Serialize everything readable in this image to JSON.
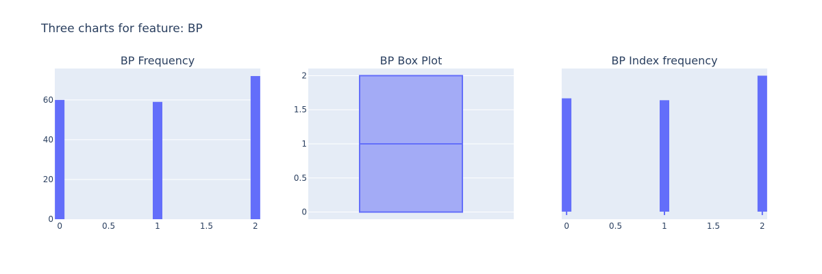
{
  "figure": {
    "title": "Three charts for feature: BP"
  },
  "colors": {
    "plot_bg": "#e5ecf6",
    "grid": "#ffffff",
    "bar": "#636efa",
    "box_fill": "#a3abf6",
    "box_line": "#636efa",
    "text": "#2a3f5f"
  },
  "chart_data": [
    {
      "type": "bar",
      "title": "BP Frequency",
      "xlabel": "",
      "ylabel": "",
      "x": [
        0,
        1,
        2
      ],
      "values": [
        60,
        59,
        72
      ],
      "xlim": [
        -0.05,
        2.05
      ],
      "ylim": [
        0,
        75.8
      ],
      "xticks": [
        0,
        0.5,
        1,
        1.5,
        2
      ],
      "xtick_labels": [
        "0",
        "0.5",
        "1",
        "1.5",
        "2"
      ],
      "yticks": [
        0,
        20,
        40,
        60
      ],
      "ytick_labels": [
        "0",
        "20",
        "40",
        "60"
      ],
      "grid": true
    },
    {
      "type": "box",
      "title": "BP Box Plot",
      "xlabel": "",
      "ylabel": "",
      "min": 0,
      "q1": 0,
      "median": 1,
      "q3": 2,
      "max": 2,
      "ylim": [
        -0.105,
        2.105
      ],
      "yticks": [
        0,
        0.5,
        1,
        1.5,
        2
      ],
      "ytick_labels": [
        "0",
        "0.5",
        "1",
        "1.5",
        "2"
      ],
      "grid": true
    },
    {
      "type": "bar",
      "title": "BP Index frequency",
      "xlabel": "",
      "ylabel": "",
      "x": [
        0,
        1,
        2
      ],
      "values": [
        60,
        59,
        72
      ],
      "xlim": [
        -0.05,
        2.05
      ],
      "ylim": [
        -4,
        75.8
      ],
      "xticks": [
        0,
        0.5,
        1,
        1.5,
        2
      ],
      "xtick_labels": [
        "0",
        "0.5",
        "1",
        "1.5",
        "2"
      ],
      "yticks": [],
      "ytick_labels": [],
      "grid": false
    }
  ]
}
